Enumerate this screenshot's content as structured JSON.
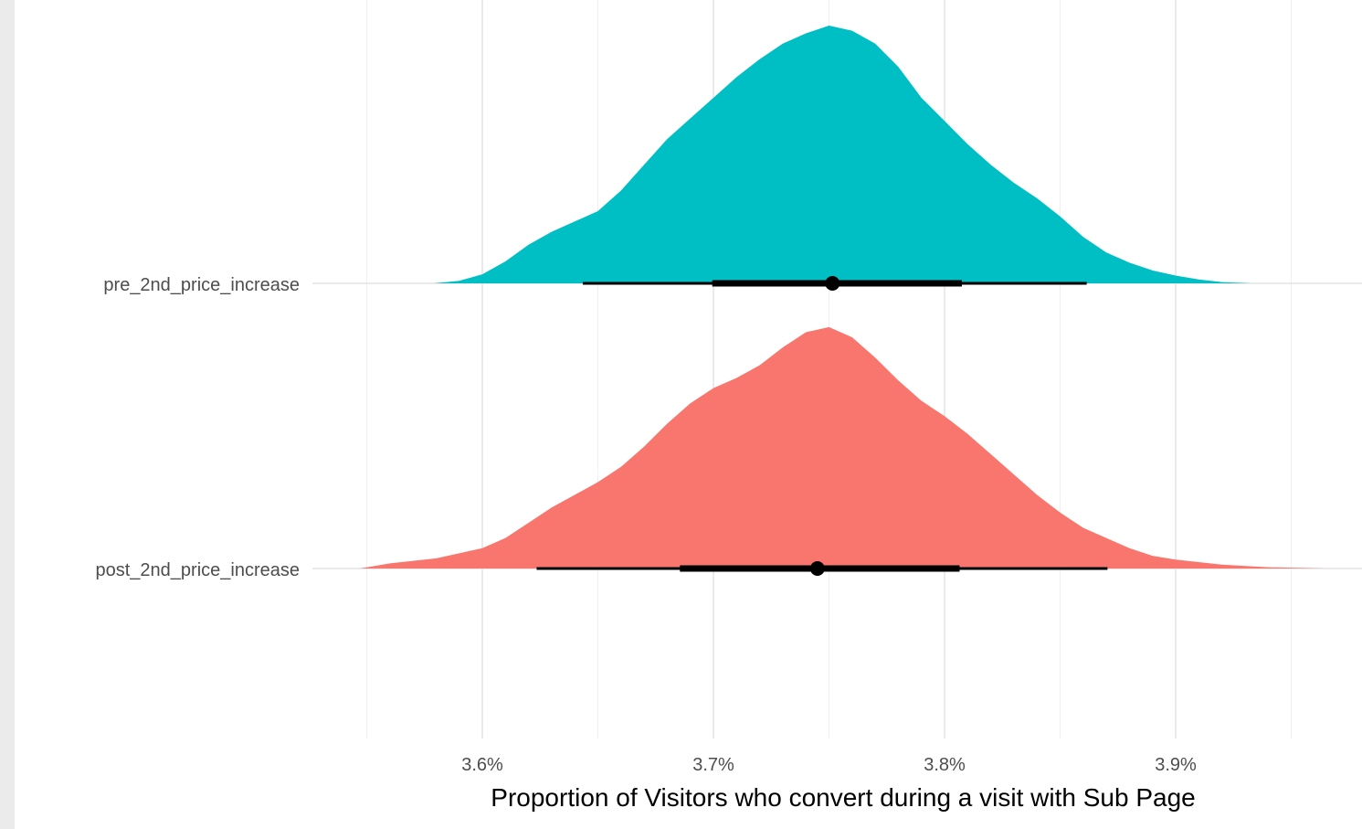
{
  "chart_data": {
    "type": "halfeye",
    "title": "",
    "xlabel": "Proportion of Visitors who convert during a visit with Sub Page",
    "ylabel": "",
    "xlim": [
      3.55,
      3.965
    ],
    "x_ticks": [
      3.6,
      3.7,
      3.8,
      3.9
    ],
    "x_tick_labels": [
      "3.6%",
      "3.7%",
      "3.8%",
      "3.9%"
    ],
    "minor_gridlines": [
      3.55,
      3.65,
      3.75,
      3.85,
      3.95
    ],
    "grid": true,
    "legend": "none",
    "categories": [
      "pre_2nd_price_increase",
      "post_2nd_price_increase"
    ],
    "series": [
      {
        "name": "pre_2nd_price_increase",
        "color": "#00BFC4",
        "point_estimate": 3.7515,
        "interval_66": [
          3.6995,
          3.8075
        ],
        "interval_95": [
          3.6435,
          3.8615
        ],
        "density": [
          [
            3.579,
            0.0
          ],
          [
            3.59,
            0.01
          ],
          [
            3.6,
            0.035
          ],
          [
            3.61,
            0.085
          ],
          [
            3.62,
            0.15
          ],
          [
            3.63,
            0.2
          ],
          [
            3.64,
            0.24
          ],
          [
            3.65,
            0.28
          ],
          [
            3.66,
            0.36
          ],
          [
            3.67,
            0.46
          ],
          [
            3.68,
            0.56
          ],
          [
            3.69,
            0.64
          ],
          [
            3.7,
            0.72
          ],
          [
            3.71,
            0.8
          ],
          [
            3.72,
            0.87
          ],
          [
            3.73,
            0.93
          ],
          [
            3.74,
            0.97
          ],
          [
            3.75,
            1.0
          ],
          [
            3.76,
            0.98
          ],
          [
            3.77,
            0.93
          ],
          [
            3.78,
            0.84
          ],
          [
            3.79,
            0.72
          ],
          [
            3.8,
            0.63
          ],
          [
            3.81,
            0.54
          ],
          [
            3.82,
            0.46
          ],
          [
            3.83,
            0.39
          ],
          [
            3.84,
            0.33
          ],
          [
            3.85,
            0.26
          ],
          [
            3.86,
            0.18
          ],
          [
            3.87,
            0.12
          ],
          [
            3.88,
            0.08
          ],
          [
            3.89,
            0.05
          ],
          [
            3.9,
            0.03
          ],
          [
            3.91,
            0.015
          ],
          [
            3.92,
            0.005
          ],
          [
            3.933,
            0.0
          ]
        ]
      },
      {
        "name": "post_2nd_price_increase",
        "color": "#F8766D",
        "point_estimate": 3.745,
        "interval_66": [
          3.6855,
          3.8065
        ],
        "interval_95": [
          3.6235,
          3.8705
        ],
        "density": [
          [
            3.547,
            0.0
          ],
          [
            3.56,
            0.02
          ],
          [
            3.58,
            0.04
          ],
          [
            3.6,
            0.08
          ],
          [
            3.61,
            0.12
          ],
          [
            3.62,
            0.18
          ],
          [
            3.63,
            0.24
          ],
          [
            3.64,
            0.29
          ],
          [
            3.65,
            0.34
          ],
          [
            3.66,
            0.4
          ],
          [
            3.67,
            0.48
          ],
          [
            3.68,
            0.57
          ],
          [
            3.69,
            0.65
          ],
          [
            3.7,
            0.71
          ],
          [
            3.71,
            0.75
          ],
          [
            3.72,
            0.8
          ],
          [
            3.73,
            0.87
          ],
          [
            3.74,
            0.93
          ],
          [
            3.75,
            0.95
          ],
          [
            3.76,
            0.91
          ],
          [
            3.77,
            0.83
          ],
          [
            3.78,
            0.74
          ],
          [
            3.79,
            0.66
          ],
          [
            3.8,
            0.6
          ],
          [
            3.81,
            0.53
          ],
          [
            3.82,
            0.45
          ],
          [
            3.83,
            0.37
          ],
          [
            3.84,
            0.29
          ],
          [
            3.85,
            0.22
          ],
          [
            3.86,
            0.16
          ],
          [
            3.87,
            0.12
          ],
          [
            3.88,
            0.08
          ],
          [
            3.89,
            0.05
          ],
          [
            3.9,
            0.035
          ],
          [
            3.92,
            0.015
          ],
          [
            3.94,
            0.005
          ],
          [
            3.965,
            0.0
          ]
        ]
      }
    ]
  }
}
